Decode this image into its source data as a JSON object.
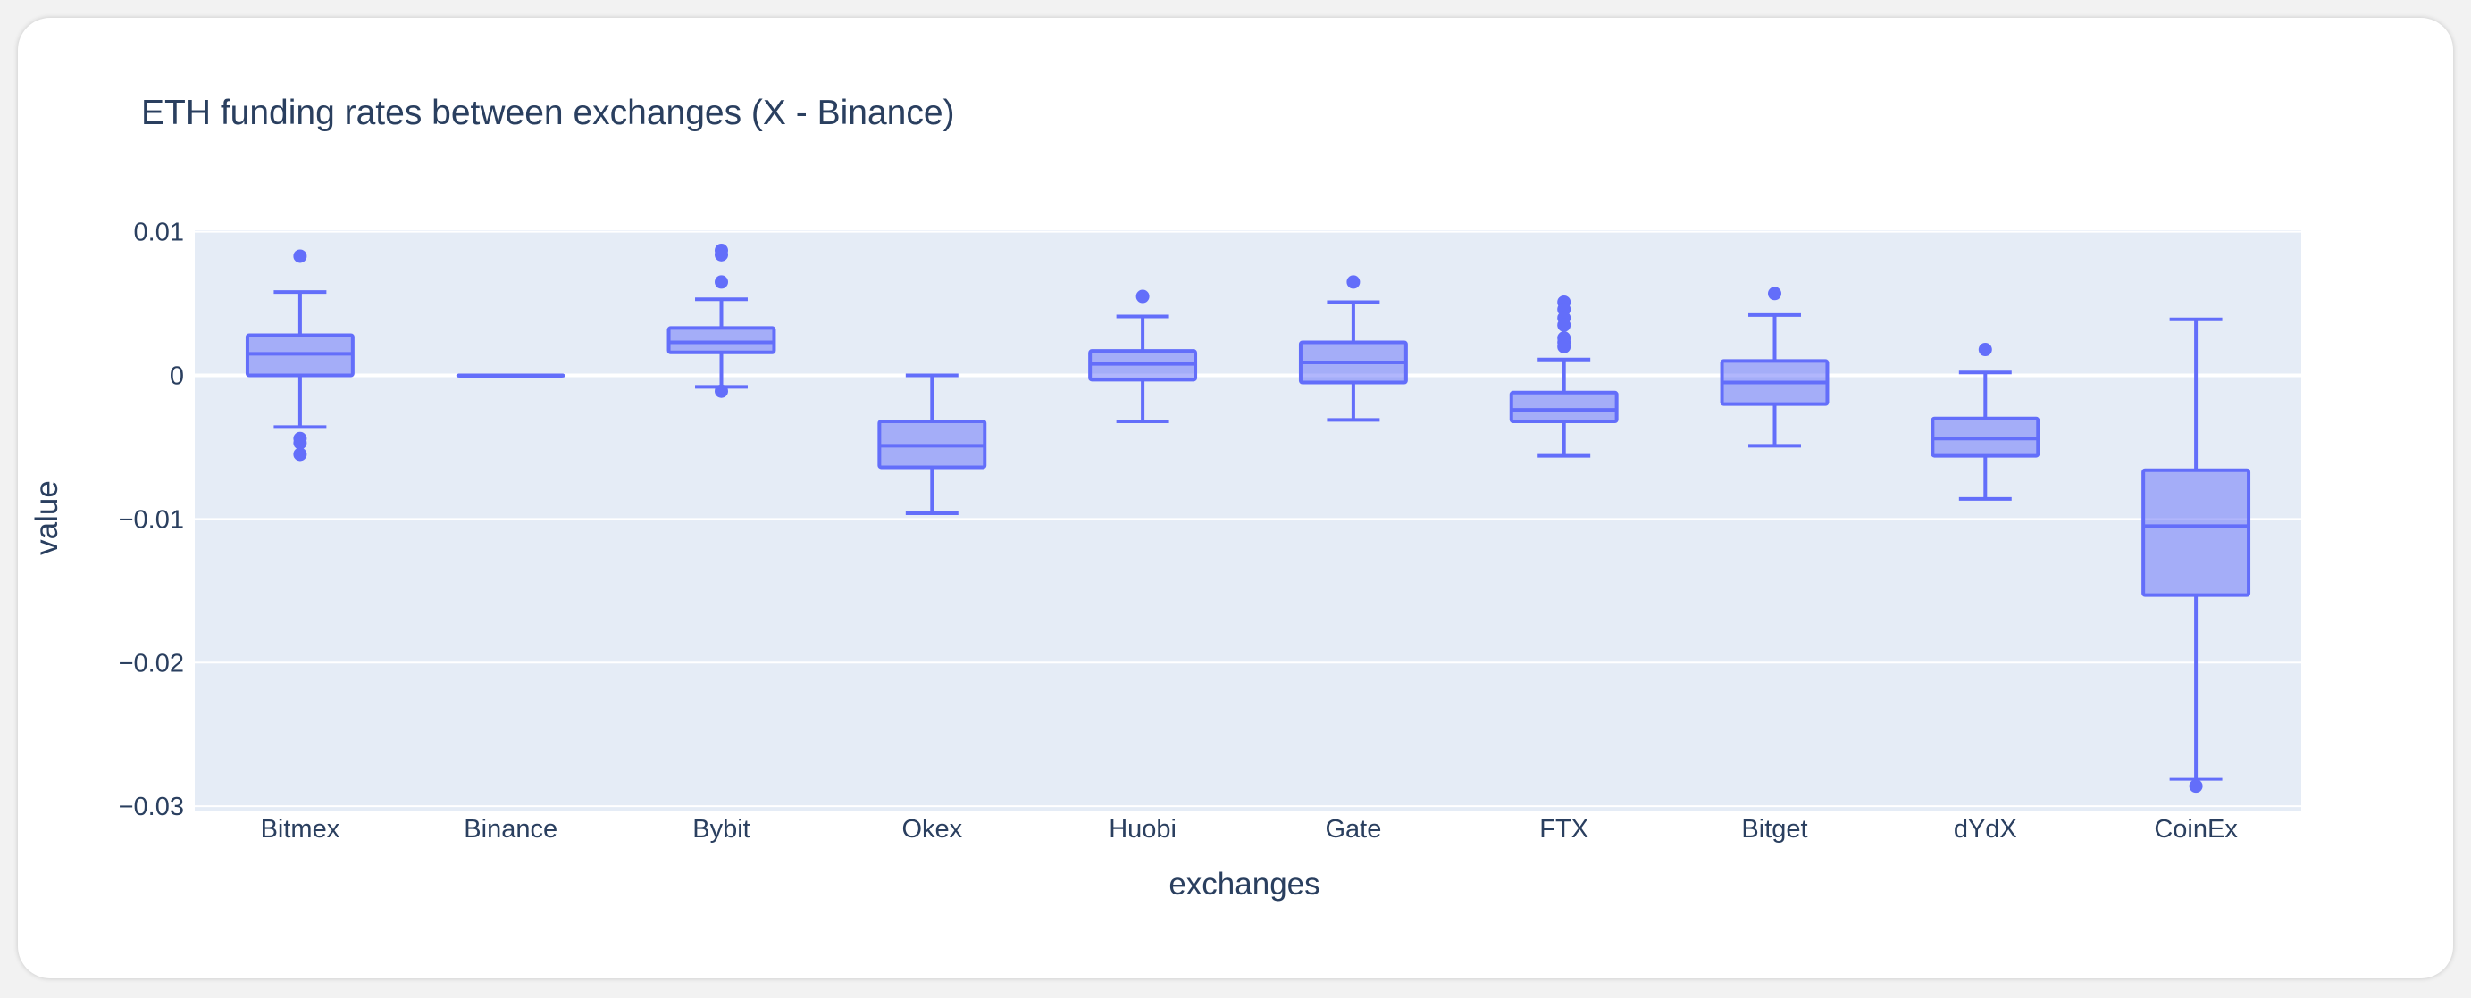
{
  "chart_data": {
    "type": "box",
    "title": "ETH funding rates between exchanges (X - Binance)",
    "xlabel": "exchanges",
    "ylabel": "value",
    "ylim": [
      -0.0303,
      0.0101
    ],
    "yticks": [
      0.01,
      0,
      -0.01,
      -0.02,
      -0.03
    ],
    "ytick_labels": [
      "0.01",
      "0",
      "−0.01",
      "−0.02",
      "−0.03"
    ],
    "grid": true,
    "colors": {
      "plot_bg": "#e5ecf6",
      "grid": "#ffffff",
      "box_line": "#636efa",
      "box_fill": "rgba(99,110,250,0.5)",
      "text": "#2a3f5f"
    },
    "categories": [
      "Bitmex",
      "Binance",
      "Bybit",
      "Okex",
      "Huobi",
      "Gate",
      "FTX",
      "Bitget",
      "dYdX",
      "CoinEx"
    ],
    "boxes": [
      {
        "name": "Bitmex",
        "lowerfence": -0.0036,
        "q1": 0.0,
        "median": 0.0015,
        "q3": 0.0028,
        "upperfence": 0.0058,
        "outliers": [
          0.0083,
          -0.0044,
          -0.0047,
          -0.0055
        ]
      },
      {
        "name": "Binance",
        "lowerfence": 0.0,
        "q1": 0.0,
        "median": 0.0,
        "q3": 0.0,
        "upperfence": 0.0,
        "outliers": []
      },
      {
        "name": "Bybit",
        "lowerfence": -0.0008,
        "q1": 0.0016,
        "median": 0.0023,
        "q3": 0.0033,
        "upperfence": 0.0053,
        "outliers": [
          0.0087,
          0.0084,
          0.0065,
          -0.0011
        ]
      },
      {
        "name": "Okex",
        "lowerfence": -0.0096,
        "q1": -0.0064,
        "median": -0.0049,
        "q3": -0.0032,
        "upperfence": 0.0,
        "outliers": []
      },
      {
        "name": "Huobi",
        "lowerfence": -0.0032,
        "q1": -0.0003,
        "median": 0.0008,
        "q3": 0.0017,
        "upperfence": 0.0041,
        "outliers": [
          0.0055
        ]
      },
      {
        "name": "Gate",
        "lowerfence": -0.0031,
        "q1": -0.0005,
        "median": 0.0009,
        "q3": 0.0023,
        "upperfence": 0.0051,
        "outliers": [
          0.0065
        ]
      },
      {
        "name": "FTX",
        "lowerfence": -0.0056,
        "q1": -0.0032,
        "median": -0.0024,
        "q3": -0.0012,
        "upperfence": 0.0011,
        "outliers": [
          0.0051,
          0.0046,
          0.004,
          0.0035,
          0.0026,
          0.0023,
          0.002
        ]
      },
      {
        "name": "Bitget",
        "lowerfence": -0.0049,
        "q1": -0.002,
        "median": -0.0005,
        "q3": 0.001,
        "upperfence": 0.0042,
        "outliers": [
          0.0057
        ]
      },
      {
        "name": "dYdX",
        "lowerfence": -0.0086,
        "q1": -0.0056,
        "median": -0.0044,
        "q3": -0.003,
        "upperfence": 0.0002,
        "outliers": [
          0.0018
        ]
      },
      {
        "name": "CoinEx",
        "lowerfence": -0.0281,
        "q1": -0.0153,
        "median": -0.0105,
        "q3": -0.0066,
        "upperfence": 0.0039,
        "outliers": [
          -0.0286
        ]
      }
    ]
  }
}
